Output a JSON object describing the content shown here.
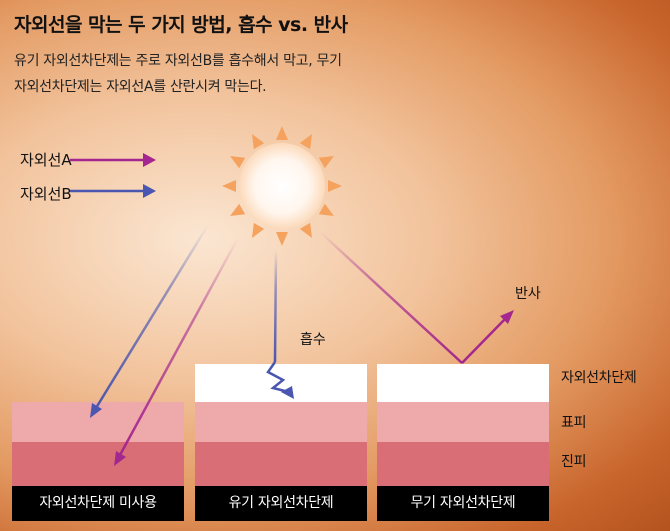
{
  "title": "자외선을 막는 두 가지 방법, 흡수 vs. 반사",
  "subtitle": {
    "line1": "유기 자외선차단제는 주로 자외선B를 흡수해서 막고, 무기",
    "line2": "자외선차단제는 자외선A를 산란시켜 막는다."
  },
  "legend": {
    "uva_label": "자외선A",
    "uvb_label": "자외선B",
    "uva_color": "#a4278f",
    "uvb_color": "#4a56b0"
  },
  "sun_icon": "sun-icon",
  "columns": [
    {
      "caption": "자외선차단제 미사용",
      "has_sunscreen": false
    },
    {
      "caption": "유기 자외선차단제",
      "has_sunscreen": true
    },
    {
      "caption": "무기 자외선차단제",
      "has_sunscreen": true
    }
  ],
  "layer_labels": {
    "sunscreen": "자외선차단제",
    "epidermis": "표피",
    "dermis": "진피"
  },
  "annotations": {
    "absorb": "흡수",
    "reflect": "반사"
  }
}
